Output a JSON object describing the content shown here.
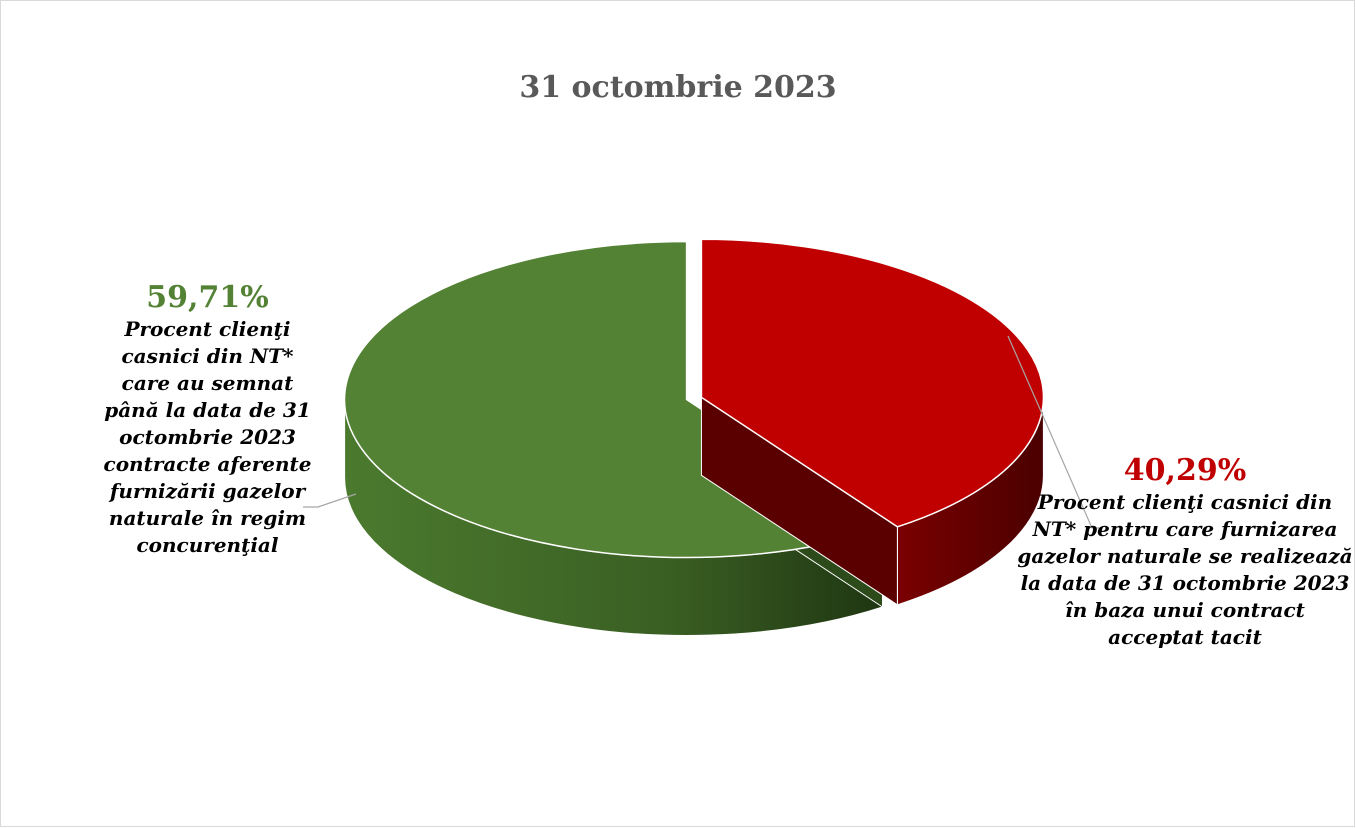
{
  "chart_data": {
    "type": "pie",
    "style": "3d-exploded",
    "title": "31 octombrie 2023",
    "slices": [
      {
        "value": 59.71,
        "label": "59,71%",
        "description": "Procent clienţi casnici din NT* care au semnat până la data de 31 octombrie 2023 contracte aferente furnizării gazelor naturale în regim concurenţial",
        "color": "#548235"
      },
      {
        "value": 40.29,
        "label": "40,29%",
        "description": "Procent clienţi casnici din NT* pentru care furnizarea gazelor naturale se realizează la data de 31 octombrie 2023 în baza unui contract acceptat tacit",
        "color": "#C00000"
      }
    ],
    "label_colors": [
      "#548235",
      "#C00000"
    ],
    "legend": "none"
  }
}
